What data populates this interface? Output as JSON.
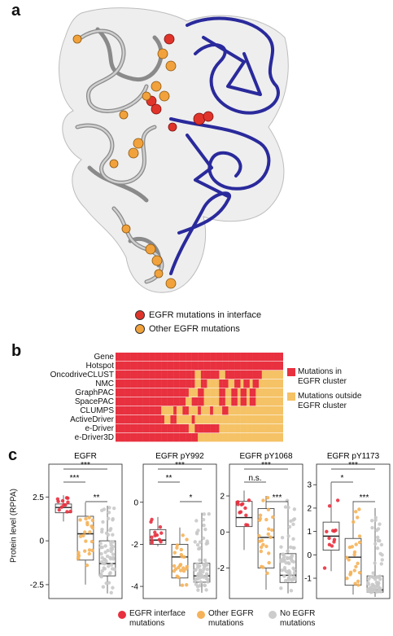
{
  "panel_a": {
    "letter": "a",
    "legend": [
      {
        "label": "EGFR mutations in interface",
        "color": "#e0342a"
      },
      {
        "label": "Other EGFR mutations",
        "color": "#f1a23c"
      }
    ]
  },
  "panel_b": {
    "letter": "b",
    "rows": [
      "Gene",
      "Hotspot",
      "OncodriveCLUST",
      "NMC",
      "GraphPAC",
      "SpacePAC",
      "CLUMPS",
      "ActiveDriver",
      "e-Driver",
      "e-Driver3D"
    ],
    "legend": [
      {
        "label_lines": [
          "Mutations in",
          "EGFR cluster"
        ],
        "color": "#e8303f"
      },
      {
        "label_lines": [
          "Mutations outside",
          "EGFR cluster"
        ],
        "color": "#f5c265"
      }
    ],
    "colors": {
      "in": "#e8303f",
      "out": "#f5c265"
    }
  },
  "panel_c": {
    "letter": "c",
    "ylabel": "Protein level (RPPA)",
    "legend": [
      {
        "label_lines": [
          "EGFR interface",
          "mutations"
        ],
        "color": "#e8303f"
      },
      {
        "label_lines": [
          "Other EGFR",
          "mutations"
        ],
        "color": "#f5b25a"
      },
      {
        "label_lines": [
          "No EGFR",
          "mutations"
        ],
        "color": "#cccccc"
      }
    ]
  },
  "chart_data": [
    {
      "type": "box",
      "title": "EGFR",
      "yticks": [
        -2.5,
        0.0,
        2.5
      ],
      "ylim": [
        -3.2,
        4.0
      ],
      "groups": [
        {
          "name": "EGFR interface mutations",
          "q1": 1.6,
          "median": 1.9,
          "q3": 2.1,
          "whisker_low": 1.1,
          "whisker_high": 2.6
        },
        {
          "name": "Other EGFR mutations",
          "q1": -1.1,
          "median": 0.4,
          "q3": 1.4,
          "whisker_low": -2.5,
          "whisker_high": 2.2
        },
        {
          "name": "No EGFR mutations",
          "q1": -2.0,
          "median": -1.3,
          "q3": 0.0,
          "whisker_low": -3.0,
          "whisker_high": 2.0
        }
      ],
      "significance": [
        {
          "pair": [
            1,
            3
          ],
          "label": "***"
        },
        {
          "pair": [
            1,
            2
          ],
          "label": "***"
        },
        {
          "pair": [
            2,
            3
          ],
          "label": "**"
        }
      ]
    },
    {
      "type": "box",
      "title": "EGFR pY992",
      "yticks": [
        -4,
        -2,
        0
      ],
      "ylim": [
        -4.5,
        1.5
      ],
      "groups": [
        {
          "name": "EGFR interface mutations",
          "q1": -2.0,
          "median": -1.8,
          "q3": -1.3,
          "whisker_low": -2.1,
          "whisker_high": -0.7
        },
        {
          "name": "Other EGFR mutations",
          "q1": -3.6,
          "median": -2.6,
          "q3": -2.0,
          "whisker_low": -4.0,
          "whisker_high": -1.2
        },
        {
          "name": "No EGFR mutations",
          "q1": -3.8,
          "median": -3.5,
          "q3": -2.9,
          "whisker_low": -4.3,
          "whisker_high": -0.5
        }
      ],
      "significance": [
        {
          "pair": [
            1,
            3
          ],
          "label": "***"
        },
        {
          "pair": [
            1,
            2
          ],
          "label": "**"
        },
        {
          "pair": [
            2,
            3
          ],
          "label": "*"
        }
      ]
    },
    {
      "type": "box",
      "title": "EGFR pY1068",
      "yticks": [
        -2,
        0,
        2
      ],
      "ylim": [
        -3.6,
        3.4
      ],
      "groups": [
        {
          "name": "EGFR interface mutations",
          "q1": 0.3,
          "median": 0.8,
          "q3": 1.7,
          "whisker_low": -1.0,
          "whisker_high": 2.3
        },
        {
          "name": "Other EGFR mutations",
          "q1": -2.0,
          "median": -0.3,
          "q3": 1.3,
          "whisker_low": -3.2,
          "whisker_high": 2.0
        },
        {
          "name": "No EGFR mutations",
          "q1": -2.8,
          "median": -2.4,
          "q3": -1.2,
          "whisker_low": -3.4,
          "whisker_high": 1.8
        }
      ],
      "significance": [
        {
          "pair": [
            1,
            3
          ],
          "label": "***"
        },
        {
          "pair": [
            1,
            2
          ],
          "label": "n.s."
        },
        {
          "pair": [
            2,
            3
          ],
          "label": "***"
        }
      ]
    },
    {
      "type": "box",
      "title": "EGFR pY1173",
      "yticks": [
        -1,
        0,
        1,
        2,
        3
      ],
      "ylim": [
        -1.8,
        3.6
      ],
      "groups": [
        {
          "name": "EGFR interface mutations",
          "q1": 0.2,
          "median": 0.8,
          "q3": 1.4,
          "whisker_low": -0.7,
          "whisker_high": 3.1
        },
        {
          "name": "Other EGFR mutations",
          "q1": -1.3,
          "median": -0.1,
          "q3": 0.7,
          "whisker_low": -1.7,
          "whisker_high": 2.3
        },
        {
          "name": "No EGFR mutations",
          "q1": -1.6,
          "median": -1.5,
          "q3": -0.9,
          "whisker_low": -1.8,
          "whisker_high": 2.0
        }
      ],
      "significance": [
        {
          "pair": [
            1,
            3
          ],
          "label": "***"
        },
        {
          "pair": [
            1,
            2
          ],
          "label": "*"
        },
        {
          "pair": [
            2,
            3
          ],
          "label": "***"
        }
      ]
    }
  ]
}
